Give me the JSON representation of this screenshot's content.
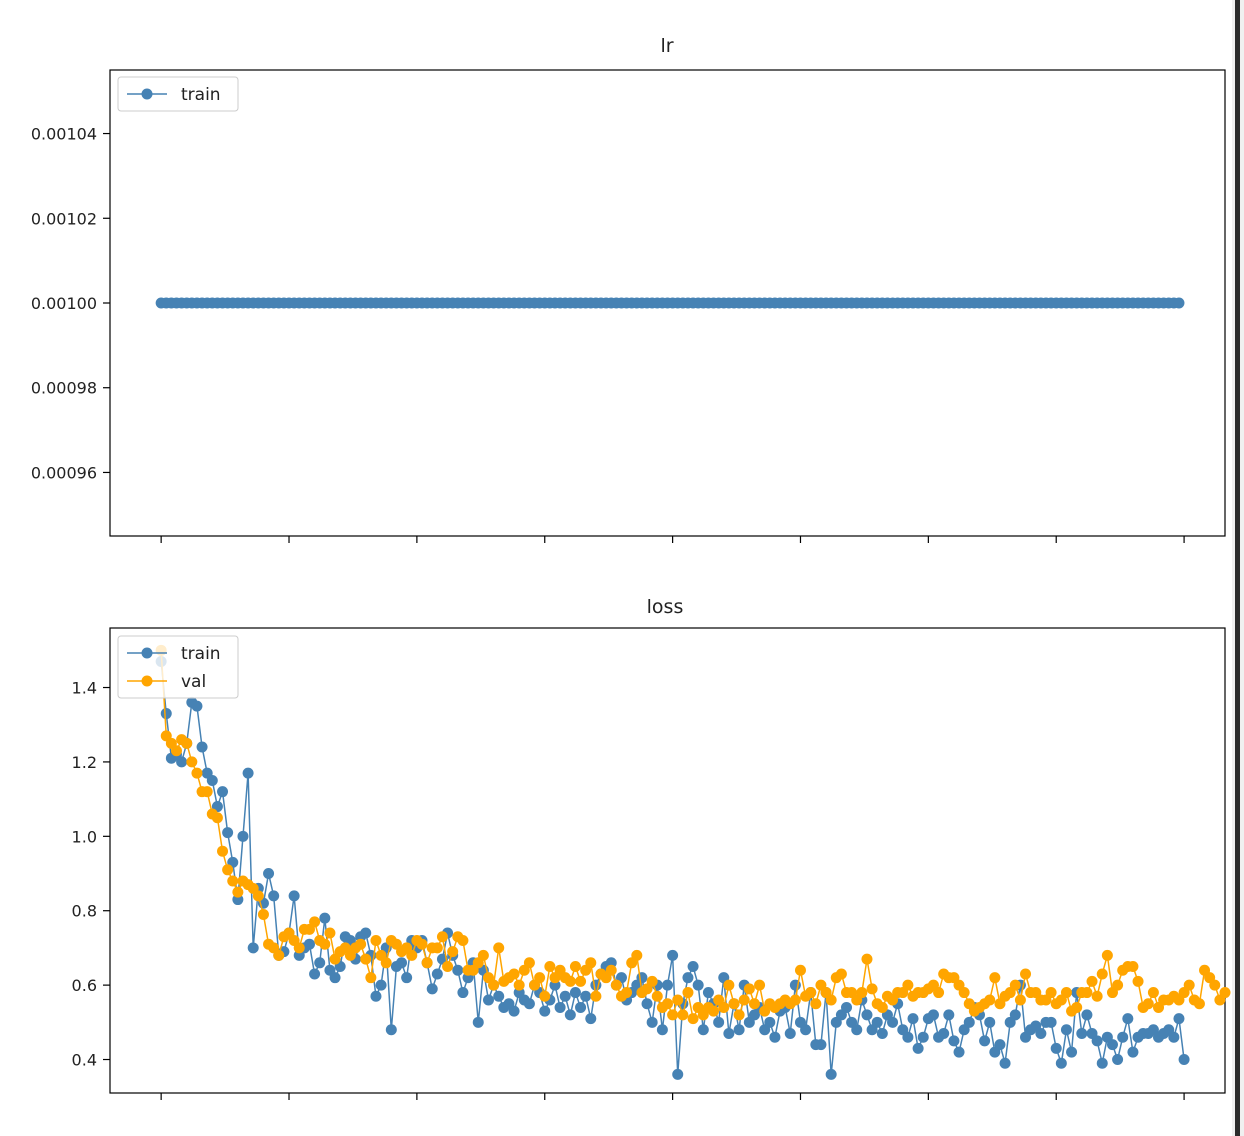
{
  "charts": [
    {
      "title": "lr",
      "type": "line",
      "ylim": [
        0.000945,
        0.001055
      ],
      "yticks": [
        0.00096,
        0.00098,
        0.001,
        0.00102,
        0.00104
      ],
      "ytick_labels": [
        "0.00096",
        "0.00098",
        "0.00100",
        "0.00102",
        "0.00104"
      ],
      "legend": {
        "placement": "top-left",
        "entries": [
          {
            "label": "train",
            "color": "#4682b4"
          }
        ]
      }
    },
    {
      "title": "loss",
      "type": "line",
      "ylim": [
        0.31,
        1.56
      ],
      "yticks": [
        0.4,
        0.6,
        0.8,
        1.0,
        1.2,
        1.4
      ],
      "ytick_labels": [
        "0.4",
        "0.6",
        "0.8",
        "1.0",
        "1.2",
        "1.4"
      ],
      "legend": {
        "placement": "top-left",
        "entries": [
          {
            "label": "train",
            "color": "#4682b4"
          },
          {
            "label": "val",
            "color": "#ffa500"
          }
        ]
      }
    }
  ],
  "chart_data": [
    {
      "type": "line",
      "title": "lr",
      "x_range": [
        0,
        199
      ],
      "xlim": [
        -10,
        208
      ],
      "series": [
        {
          "name": "train",
          "color": "#4682b4",
          "constant_value": 0.001,
          "count": 200
        }
      ],
      "ylim": [
        0.000945,
        0.001055
      ],
      "grid": false,
      "legend": "top-left"
    },
    {
      "type": "line",
      "title": "loss",
      "xlim": [
        -10,
        208
      ],
      "ylim": [
        0.31,
        1.56
      ],
      "grid": false,
      "legend": "top-left",
      "series": [
        {
          "name": "train",
          "color": "#4682b4",
          "values": [
            1.47,
            1.33,
            1.21,
            1.22,
            1.2,
            1.25,
            1.36,
            1.35,
            1.24,
            1.17,
            1.15,
            1.08,
            1.12,
            1.01,
            0.93,
            0.83,
            1.0,
            1.17,
            0.7,
            0.86,
            0.82,
            0.9,
            0.84,
            0.68,
            0.69,
            0.74,
            0.84,
            0.68,
            0.7,
            0.71,
            0.63,
            0.66,
            0.78,
            0.64,
            0.62,
            0.65,
            0.73,
            0.72,
            0.67,
            0.73,
            0.74,
            0.68,
            0.57,
            0.6,
            0.7,
            0.48,
            0.65,
            0.66,
            0.62,
            0.72,
            0.7,
            0.72,
            0.66,
            0.59,
            0.63,
            0.67,
            0.74,
            0.68,
            0.64,
            0.58,
            0.62,
            0.66,
            0.5,
            0.64,
            0.56,
            0.6,
            0.57,
            0.54,
            0.55,
            0.53,
            0.58,
            0.56,
            0.55,
            0.6,
            0.58,
            0.53,
            0.56,
            0.6,
            0.54,
            0.57,
            0.52,
            0.58,
            0.54,
            0.57,
            0.51,
            0.6,
            0.63,
            0.65,
            0.66,
            0.6,
            0.62,
            0.56,
            0.58,
            0.6,
            0.62,
            0.55,
            0.5,
            0.6,
            0.48,
            0.6,
            0.68,
            0.36,
            0.55,
            0.62,
            0.65,
            0.6,
            0.48,
            0.58,
            0.55,
            0.5,
            0.62,
            0.47,
            0.55,
            0.48,
            0.6,
            0.5,
            0.52,
            0.54,
            0.48,
            0.5,
            0.46,
            0.53,
            0.54,
            0.47,
            0.6,
            0.5,
            0.48,
            0.58,
            0.44,
            0.44,
            0.58,
            0.36,
            0.5,
            0.52,
            0.54,
            0.5,
            0.48,
            0.56,
            0.52,
            0.48,
            0.5,
            0.47,
            0.52,
            0.5,
            0.55,
            0.48,
            0.46,
            0.51,
            0.43,
            0.46,
            0.51,
            0.52,
            0.46,
            0.47,
            0.52,
            0.45,
            0.42,
            0.48,
            0.5,
            0.54,
            0.52,
            0.45,
            0.5,
            0.42,
            0.44,
            0.39,
            0.5,
            0.52,
            0.6,
            0.46,
            0.48,
            0.49,
            0.47,
            0.5,
            0.5,
            0.43,
            0.39,
            0.48,
            0.42,
            0.58,
            0.47,
            0.52,
            0.47,
            0.45,
            0.39,
            0.46,
            0.44,
            0.4,
            0.46,
            0.51,
            0.42,
            0.46,
            0.47,
            0.47,
            0.48,
            0.46,
            0.47,
            0.48,
            0.46,
            0.51,
            0.4
          ]
        },
        {
          "name": "val",
          "color": "#ffa500",
          "values": [
            1.5,
            1.27,
            1.25,
            1.23,
            1.26,
            1.25,
            1.2,
            1.17,
            1.12,
            1.12,
            1.06,
            1.05,
            0.96,
            0.91,
            0.88,
            0.85,
            0.88,
            0.87,
            0.86,
            0.84,
            0.79,
            0.71,
            0.7,
            0.68,
            0.73,
            0.74,
            0.72,
            0.7,
            0.75,
            0.75,
            0.77,
            0.72,
            0.71,
            0.74,
            0.67,
            0.69,
            0.7,
            0.68,
            0.7,
            0.71,
            0.67,
            0.62,
            0.72,
            0.68,
            0.66,
            0.72,
            0.71,
            0.69,
            0.7,
            0.68,
            0.72,
            0.71,
            0.66,
            0.7,
            0.7,
            0.73,
            0.65,
            0.69,
            0.73,
            0.72,
            0.64,
            0.64,
            0.66,
            0.68,
            0.62,
            0.6,
            0.7,
            0.61,
            0.62,
            0.63,
            0.6,
            0.64,
            0.66,
            0.6,
            0.62,
            0.57,
            0.65,
            0.62,
            0.64,
            0.62,
            0.61,
            0.65,
            0.61,
            0.64,
            0.66,
            0.57,
            0.63,
            0.62,
            0.64,
            0.6,
            0.57,
            0.58,
            0.66,
            0.68,
            0.58,
            0.59,
            0.61,
            0.57,
            0.54,
            0.55,
            0.52,
            0.56,
            0.52,
            0.58,
            0.51,
            0.54,
            0.52,
            0.54,
            0.53,
            0.56,
            0.54,
            0.6,
            0.55,
            0.52,
            0.56,
            0.59,
            0.55,
            0.6,
            0.53,
            0.55,
            0.54,
            0.55,
            0.56,
            0.55,
            0.56,
            0.64,
            0.57,
            0.58,
            0.55,
            0.6,
            0.58,
            0.56,
            0.62,
            0.63,
            0.58,
            0.58,
            0.56,
            0.58,
            0.67,
            0.59,
            0.55,
            0.54,
            0.57,
            0.56,
            0.58,
            0.58,
            0.6,
            0.57,
            0.58,
            0.58,
            0.59,
            0.6,
            0.58,
            0.63,
            0.62,
            0.62,
            0.6,
            0.58,
            0.55,
            0.53,
            0.54,
            0.55,
            0.56,
            0.62,
            0.55,
            0.57,
            0.58,
            0.6,
            0.56,
            0.63,
            0.58,
            0.58,
            0.56,
            0.56,
            0.58,
            0.55,
            0.56,
            0.58,
            0.53,
            0.54,
            0.58,
            0.58,
            0.61,
            0.57,
            0.63,
            0.68,
            0.58,
            0.6,
            0.64,
            0.65,
            0.65,
            0.61,
            0.54,
            0.55,
            0.58,
            0.54,
            0.56,
            0.56,
            0.57,
            0.56,
            0.58,
            0.6,
            0.56,
            0.55,
            0.64,
            0.62,
            0.6,
            0.56,
            0.58
          ]
        }
      ]
    }
  ]
}
